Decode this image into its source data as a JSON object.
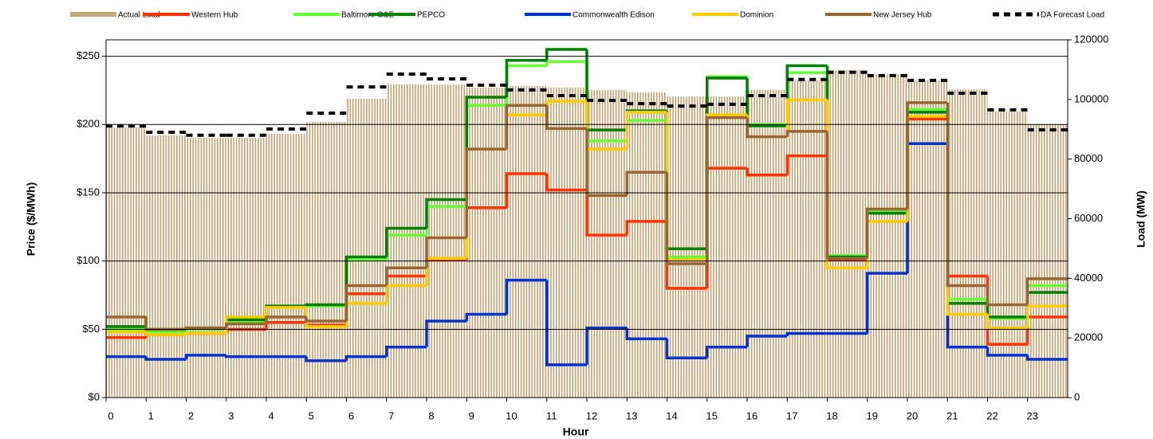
{
  "chart_data": {
    "type": "line",
    "x_label": "Hour",
    "y_label": "Price ($/MWh)",
    "y2_label": "Load (MW)",
    "xlim": [
      0,
      24
    ],
    "xticks": [
      0,
      1,
      2,
      3,
      4,
      5,
      6,
      7,
      8,
      9,
      10,
      11,
      12,
      13,
      14,
      15,
      16,
      17,
      18,
      19,
      20,
      21,
      22,
      23
    ],
    "ylim": [
      0,
      262
    ],
    "yticks": [
      {
        "value": 0,
        "label": "$0"
      },
      {
        "value": 50,
        "label": "$50"
      },
      {
        "value": 100,
        "label": "$100"
      },
      {
        "value": 150,
        "label": "$150"
      },
      {
        "value": 200,
        "label": "$200"
      },
      {
        "value": 250,
        "label": "$250"
      }
    ],
    "y2lim": [
      0,
      120000
    ],
    "y2ticks": [
      0,
      20000,
      40000,
      60000,
      80000,
      100000,
      120000
    ],
    "grid": true,
    "legend": "top",
    "series": [
      {
        "name": "Actual Load",
        "style": "bar",
        "axis": "y2",
        "color": "#c4a87a",
        "values": [
          90600,
          88000,
          87100,
          87100,
          88500,
          92500,
          100200,
          105000,
          105000,
          104000,
          104500,
          104000,
          103200,
          102400,
          101000,
          101000,
          103200,
          106400,
          109900,
          108500,
          106400,
          103400,
          96000,
          91700
        ]
      },
      {
        "name": "Western Hub",
        "style": "line",
        "color": "#ff3300",
        "values": [
          44,
          46,
          47,
          50,
          55,
          53,
          76,
          89,
          101,
          139,
          164,
          152,
          119,
          129,
          80,
          168,
          163,
          177,
          101,
          136,
          204,
          89,
          39,
          59
        ]
      },
      {
        "name": "Baltimore G&E",
        "style": "line",
        "color": "#66ff33",
        "values": [
          50,
          48,
          50,
          55,
          67,
          67,
          101,
          119,
          140,
          214,
          243,
          246,
          188,
          203,
          103,
          235,
          200,
          238,
          104,
          137,
          211,
          72,
          58,
          82
        ]
      },
      {
        "name": "PEPCO",
        "style": "line",
        "color": "#008000",
        "values": [
          52,
          50,
          51,
          57,
          67,
          68,
          103,
          124,
          145,
          220,
          247,
          255,
          196,
          210,
          109,
          234,
          199,
          243,
          103,
          135,
          209,
          69,
          59,
          77
        ]
      },
      {
        "name": "Commonwealth Edison",
        "style": "line",
        "color": "#0033cc",
        "values": [
          30,
          28,
          31,
          30,
          30,
          27,
          30,
          37,
          56,
          61,
          86,
          24,
          51,
          43,
          29,
          37,
          45,
          47,
          47,
          91,
          186,
          37,
          31,
          28
        ]
      },
      {
        "name": "Dominion",
        "style": "line",
        "color": "#ffcc00",
        "values": [
          48,
          46,
          47,
          59,
          66,
          52,
          69,
          82,
          102,
          182,
          207,
          217,
          182,
          209,
          101,
          207,
          191,
          218,
          95,
          129,
          206,
          61,
          51,
          67
        ]
      },
      {
        "name": "New Jersey Hub",
        "style": "line",
        "color": "#996633",
        "values": [
          59,
          50,
          51,
          54,
          59,
          56,
          82,
          95,
          117,
          182,
          214,
          197,
          148,
          165,
          98,
          205,
          191,
          195,
          102,
          138,
          216,
          82,
          68,
          87
        ]
      },
      {
        "name": "DA Forecast Load",
        "style": "dashed",
        "axis": "y2",
        "color": "#000000",
        "values": [
          91100,
          89000,
          88000,
          88000,
          90100,
          95400,
          104200,
          108500,
          106900,
          104800,
          103200,
          101300,
          99700,
          98600,
          97800,
          98400,
          101300,
          106700,
          109100,
          108000,
          106400,
          102100,
          96500,
          89800
        ]
      }
    ]
  }
}
